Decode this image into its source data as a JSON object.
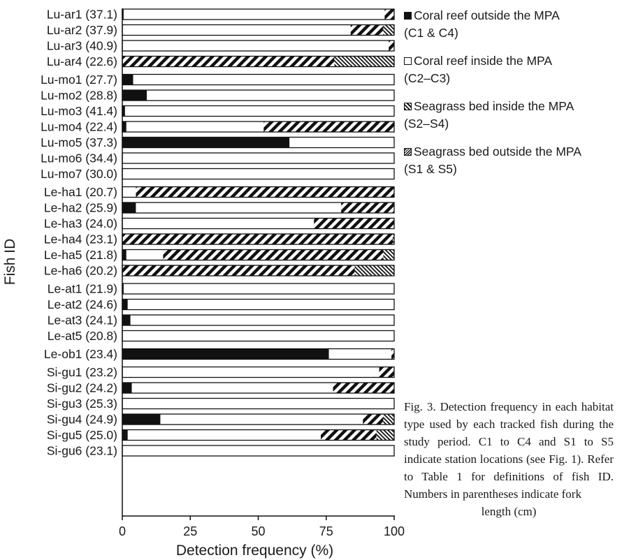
{
  "chart_data": {
    "type": "bar",
    "orientation": "horizontal",
    "stacked": true,
    "ylabel": "Fish ID",
    "xlabel": "Detection frequency (%)",
    "xlim": [
      0,
      100
    ],
    "xticks": [
      "0",
      "25",
      "50",
      "75",
      "100"
    ],
    "legend_position": "right",
    "series": [
      {
        "name": "Coral reef outside the MPA",
        "stations": "(C1 & C4)",
        "fill": "black",
        "color": "#111111"
      },
      {
        "name": "Coral reef inside the MPA",
        "stations": "(C2–C3)",
        "fill": "white",
        "color": "#ffffff"
      },
      {
        "name": "Seagrass bed inside the MPA",
        "stations": "(S2–S4)",
        "fill": "wide diagonal hatch",
        "color": "#111111"
      },
      {
        "name": "Seagrass bed outside the MPA",
        "stations": "(S1 & S5)",
        "fill": "fine diagonal hatch",
        "color": "#111111"
      }
    ],
    "groups": [
      {
        "rows": [
          {
            "label": "Lu-ar1 (37.1)",
            "values": [
              0.5,
              96.0,
              3.5,
              0
            ]
          },
          {
            "label": "Lu-ar2 (37.9)",
            "values": [
              0,
              84.0,
              12.0,
              4.0
            ]
          },
          {
            "label": "Lu-ar3 (40.9)",
            "values": [
              0,
              98.0,
              2.0,
              0
            ]
          },
          {
            "label": "Lu-ar4 (22.6)",
            "values": [
              0,
              0,
              78.0,
              22.0
            ]
          }
        ]
      },
      {
        "rows": [
          {
            "label": "Lu-mo1 (27.7)",
            "values": [
              4.0,
              96.0,
              0,
              0
            ]
          },
          {
            "label": "Lu-mo2 (28.8)",
            "values": [
              9.0,
              91.0,
              0,
              0
            ]
          },
          {
            "label": "Lu-mo3 (41.4)",
            "values": [
              1.0,
              99.0,
              0,
              0
            ]
          },
          {
            "label": "Lu-mo4 (22.4)",
            "values": [
              1.5,
              50.5,
              48.0,
              0
            ]
          },
          {
            "label": "Lu-mo5 (37.3)",
            "values": [
              61.5,
              38.5,
              0,
              0
            ]
          },
          {
            "label": "Lu-mo6 (34.4)",
            "values": [
              0,
              100,
              0,
              0
            ]
          },
          {
            "label": "Lu-mo7 (30.0)",
            "values": [
              0,
              100,
              0,
              0
            ]
          }
        ]
      },
      {
        "rows": [
          {
            "label": "Le-ha1 (20.7)",
            "values": [
              0,
              5.0,
              95.0,
              0
            ]
          },
          {
            "label": "Le-ha2 (25.9)",
            "values": [
              5.0,
              75.5,
              19.5,
              0
            ]
          },
          {
            "label": "Le-ha3 (24.0)",
            "values": [
              0,
              70.5,
              29.5,
              0
            ]
          },
          {
            "label": "Le-ha4 (23.1)",
            "values": [
              0,
              0,
              99.5,
              0.5
            ]
          },
          {
            "label": "Le-ha5 (21.8)",
            "values": [
              1.5,
              13.5,
              81.0,
              4.0
            ]
          },
          {
            "label": "Le-ha6 (20.2)",
            "values": [
              0,
              0,
              85.5,
              14.5
            ]
          }
        ]
      },
      {
        "rows": [
          {
            "label": "Le-at1 (21.9)",
            "values": [
              0.5,
              99.5,
              0,
              0
            ]
          },
          {
            "label": "Le-at2 (24.6)",
            "values": [
              2.0,
              98.0,
              0,
              0
            ]
          },
          {
            "label": "Le-at3 (24.1)",
            "values": [
              3.0,
              97.0,
              0,
              0
            ]
          },
          {
            "label": "Le-at5 (20.8)",
            "values": [
              0,
              100,
              0,
              0
            ]
          }
        ]
      },
      {
        "rows": [
          {
            "label": "Le-ob1 (23.4)",
            "values": [
              76.0,
              23.0,
              1.0,
              0
            ]
          }
        ]
      },
      {
        "rows": [
          {
            "label": "Si-gu1 (23.2)",
            "values": [
              0,
              94.5,
              5.5,
              0
            ]
          },
          {
            "label": "Si-gu2 (24.2)",
            "values": [
              3.5,
              74.0,
              22.5,
              0
            ]
          },
          {
            "label": "Si-gu3 (25.3)",
            "values": [
              0,
              100,
              0,
              0
            ]
          },
          {
            "label": "Si-gu4 (24.9)",
            "values": [
              14.0,
              74.5,
              7.5,
              4.0
            ]
          },
          {
            "label": "Si-gu5 (25.0)",
            "values": [
              2.0,
              71.0,
              20.5,
              6.5
            ]
          },
          {
            "label": "Si-gu6 (23.1)",
            "values": [
              0,
              100,
              0,
              0
            ]
          }
        ]
      }
    ]
  },
  "legend": [
    {
      "line1": "Coral reef outside the MPA",
      "line2": "(C1 & C4)",
      "icon": "solid-black-square"
    },
    {
      "line1": "Coral reef inside the MPA",
      "line2": "(C2–C3)",
      "icon": "open-white-square"
    },
    {
      "line1": "Seagrass bed inside the MPA",
      "line2": "(S2–S4)",
      "icon": "wide-hatched-square"
    },
    {
      "line1": "Seagrass bed outside the MPA",
      "line2": "(S1 & S5)",
      "icon": "fine-hatched-square"
    }
  ],
  "caption": {
    "main": "Fig. 3. Detection frequency in each habitat type used by each tracked fish during the study period. C1 to C4 and S1 to S5 indicate station locations (see Fig. 1). Refer to Table 1 for definitions of fish ID. Numbers in parentheses indicate fork",
    "last_line": "length (cm)"
  }
}
